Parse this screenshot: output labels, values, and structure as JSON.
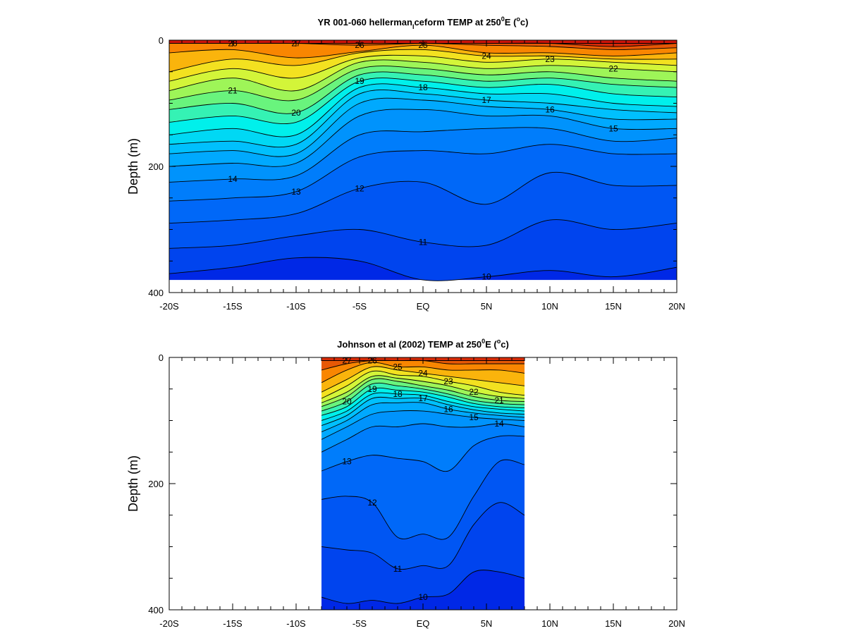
{
  "chart_data": [
    {
      "type": "heatmap",
      "subtype": "filled-contour",
      "title": "YR 001-060 hellerman_ceform TEMP at 250°E (°c)",
      "title_parts": {
        "pre": "YR 001-060 hellerman",
        "sub": "I",
        "mid": "ceform TEMP at 250",
        "sup1": "0",
        "e": "E (",
        "sup2": "o",
        "end": "c)"
      },
      "ylabel": "Depth (m)",
      "xlabel": "",
      "x_range": [
        -20,
        20
      ],
      "y_range": [
        0,
        400
      ],
      "y_inverted": true,
      "x_ticks": [
        -20,
        -15,
        -10,
        -5,
        0,
        5,
        10,
        15,
        20
      ],
      "x_tick_labels": [
        "-20S",
        "-15S",
        "-10S",
        "-5S",
        "EQ",
        "5N",
        "10N",
        "15N",
        "20N"
      ],
      "y_tick_labels": [
        "0",
        "200",
        "400"
      ],
      "data_x_extent": [
        -20,
        20
      ],
      "data_depth_max": 380,
      "colormap": "rainbow (blue cold → red warm)",
      "temp_range": [
        9,
        28
      ],
      "isotherms": [
        {
          "t": 28,
          "depth": [
            5,
            5,
            5,
            5,
            5,
            5,
            5,
            5,
            5
          ]
        },
        {
          "t": 27,
          "depth": [
            5,
            5,
            5,
            5,
            5,
            5,
            5,
            10,
            5
          ]
        },
        {
          "t": 26,
          "depth": [
            5,
            5,
            5,
            8,
            5,
            8,
            10,
            15,
            12
          ]
        },
        {
          "t": 25,
          "depth": [
            20,
            15,
            28,
            18,
            8,
            20,
            20,
            25,
            20
          ]
        },
        {
          "t": 24,
          "depth": [
            50,
            30,
            40,
            20,
            15,
            25,
            25,
            30,
            30
          ]
        },
        {
          "t": 23,
          "depth": [
            65,
            45,
            60,
            28,
            25,
            35,
            30,
            35,
            40
          ]
        },
        {
          "t": 22,
          "depth": [
            80,
            60,
            80,
            35,
            35,
            45,
            40,
            45,
            50
          ]
        },
        {
          "t": 21,
          "depth": [
            95,
            80,
            95,
            45,
            45,
            55,
            50,
            60,
            65
          ]
        },
        {
          "t": 20,
          "depth": [
            110,
            100,
            115,
            55,
            55,
            65,
            60,
            70,
            75
          ]
        },
        {
          "t": 19,
          "depth": [
            130,
            120,
            130,
            65,
            65,
            75,
            70,
            85,
            90
          ]
        },
        {
          "t": 18,
          "depth": [
            150,
            140,
            150,
            75,
            75,
            85,
            85,
            100,
            105
          ]
        },
        {
          "t": 17,
          "depth": [
            165,
            160,
            165,
            85,
            85,
            95,
            100,
            110,
            115
          ]
        },
        {
          "t": 16,
          "depth": [
            180,
            175,
            180,
            100,
            95,
            105,
            110,
            125,
            125
          ]
        },
        {
          "t": 15,
          "depth": [
            200,
            195,
            195,
            120,
            110,
            120,
            120,
            140,
            140
          ]
        },
        {
          "t": 14,
          "depth": [
            225,
            220,
            215,
            150,
            145,
            140,
            140,
            160,
            155
          ]
        },
        {
          "t": 13,
          "depth": [
            255,
            250,
            240,
            185,
            175,
            180,
            165,
            180,
            180
          ]
        },
        {
          "t": 12,
          "depth": [
            290,
            285,
            275,
            235,
            225,
            260,
            210,
            230,
            230
          ]
        },
        {
          "t": 11,
          "depth": [
            330,
            325,
            310,
            300,
            320,
            325,
            285,
            300,
            290
          ]
        },
        {
          "t": 10,
          "depth": [
            370,
            360,
            345,
            350,
            380,
            375,
            365,
            375,
            360
          ]
        }
      ],
      "contour_labels": [
        "28",
        "27",
        "26",
        "25",
        "24",
        "23",
        "22",
        "21",
        "20",
        "19",
        "18",
        "17",
        "16",
        "15",
        "14",
        "13",
        "12",
        "11",
        "10"
      ]
    },
    {
      "type": "heatmap",
      "subtype": "filled-contour",
      "title": "Johnson et al (2002) TEMP at 250°E (°c)",
      "title_parts": {
        "pre": "Johnson et al (2002) TEMP at 250",
        "sup1": "0",
        "e": "E (",
        "sup2": "o",
        "end": "c)"
      },
      "ylabel": "Depth (m)",
      "xlabel": "",
      "x_range": [
        -20,
        20
      ],
      "y_range": [
        0,
        400
      ],
      "y_inverted": true,
      "x_ticks": [
        -20,
        -15,
        -10,
        -5,
        0,
        5,
        10,
        15,
        20
      ],
      "x_tick_labels": [
        "-20S",
        "-15S",
        "-10S",
        "-5S",
        "EQ",
        "5N",
        "10N",
        "15N",
        "20N"
      ],
      "y_tick_labels": [
        "0",
        "200",
        "400"
      ],
      "data_x_extent": [
        -8,
        8
      ],
      "data_depth_max": 400,
      "colormap": "rainbow (blue cold → red warm)",
      "temp_range": [
        9,
        28
      ],
      "isotherms": [
        {
          "t": 27,
          "depth": [
            5,
            5,
            5,
            5,
            5,
            5,
            5,
            5,
            5
          ]
        },
        {
          "t": 26,
          "depth": [
            20,
            10,
            5,
            5,
            5,
            10,
            10,
            10,
            10
          ]
        },
        {
          "t": 25,
          "depth": [
            40,
            20,
            8,
            15,
            15,
            20,
            20,
            20,
            25
          ]
        },
        {
          "t": 24,
          "depth": [
            55,
            35,
            15,
            20,
            25,
            30,
            35,
            40,
            45
          ]
        },
        {
          "t": 23,
          "depth": [
            65,
            45,
            22,
            28,
            30,
            38,
            45,
            55,
            60
          ]
        },
        {
          "t": 22,
          "depth": [
            72,
            55,
            30,
            33,
            38,
            45,
            55,
            62,
            65
          ]
        },
        {
          "t": 21,
          "depth": [
            78,
            62,
            35,
            38,
            45,
            52,
            62,
            68,
            70
          ]
        },
        {
          "t": 20,
          "depth": [
            85,
            70,
            42,
            45,
            50,
            58,
            68,
            73,
            75
          ]
        },
        {
          "t": 19,
          "depth": [
            92,
            78,
            50,
            52,
            55,
            63,
            73,
            78,
            80
          ]
        },
        {
          "t": 18,
          "depth": [
            100,
            85,
            58,
            58,
            60,
            70,
            78,
            82,
            85
          ]
        },
        {
          "t": 17,
          "depth": [
            108,
            92,
            65,
            65,
            65,
            75,
            83,
            88,
            90
          ]
        },
        {
          "t": 16,
          "depth": [
            118,
            100,
            75,
            72,
            72,
            82,
            88,
            92,
            95
          ]
        },
        {
          "t": 15,
          "depth": [
            130,
            110,
            90,
            85,
            85,
            90,
            95,
            98,
            100
          ]
        },
        {
          "t": 14,
          "depth": [
            150,
            130,
            110,
            110,
            105,
            110,
            110,
            105,
            110
          ]
        },
        {
          "t": 13,
          "depth": [
            180,
            165,
            155,
            160,
            165,
            180,
            140,
            125,
            125
          ]
        },
        {
          "t": 12,
          "depth": [
            225,
            220,
            230,
            285,
            280,
            285,
            220,
            165,
            170
          ]
        },
        {
          "t": 11,
          "depth": [
            300,
            305,
            310,
            335,
            330,
            330,
            265,
            230,
            250
          ]
        },
        {
          "t": 10,
          "depth": [
            380,
            390,
            385,
            390,
            380,
            375,
            340,
            340,
            350
          ]
        }
      ],
      "contour_labels": [
        "27",
        "26",
        "25",
        "24",
        "23",
        "22",
        "21",
        "20",
        "19",
        "18",
        "17",
        "16",
        "15",
        "14",
        "13",
        "12",
        "11",
        "10"
      ]
    }
  ]
}
